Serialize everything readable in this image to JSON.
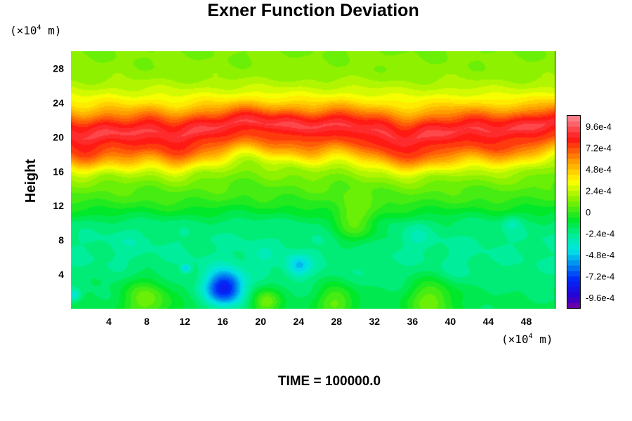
{
  "chart_data": {
    "type": "heatmap",
    "title": "Exner Function Deviation",
    "ylabel": "Height",
    "xlabel": "",
    "x_unit": {
      "prefix": "(×10",
      "exp": "4",
      "suffix": " m)"
    },
    "y_unit": {
      "prefix": "(×10",
      "exp": "4",
      "suffix": " m)"
    },
    "xlim": [
      0,
      51
    ],
    "ylim": [
      0,
      30
    ],
    "x_ticks": [
      4,
      8,
      12,
      16,
      20,
      24,
      28,
      32,
      36,
      40,
      44,
      48
    ],
    "y_ticks": [
      4,
      8,
      12,
      16,
      20,
      24,
      28
    ],
    "colorbar": {
      "range": [
        -0.00108,
        0.00108
      ],
      "tick_values": [
        0.00096,
        0.00072,
        0.00048,
        0.00024,
        0,
        -0.00024,
        -0.00048,
        -0.00072,
        -0.00096
      ],
      "tick_labels": [
        "9.6e-4",
        "7.2e-4",
        "4.8e-4",
        "2.4e-4",
        "0",
        "-2.4e-4",
        "-4.8e-4",
        "-7.2e-4",
        "-9.6e-4"
      ]
    },
    "vertical_profile": [
      [
        0,
        -0.00016
      ],
      [
        2,
        -0.00018
      ],
      [
        4,
        -0.00022
      ],
      [
        6,
        -0.00024
      ],
      [
        8,
        -0.00024
      ],
      [
        10,
        -0.0002
      ],
      [
        11,
        -0.00012
      ],
      [
        12,
        -4e-05
      ],
      [
        13,
        2e-05
      ],
      [
        14,
        6e-05
      ],
      [
        15,
        0.00012
      ],
      [
        16,
        0.0002
      ],
      [
        17,
        0.00036
      ],
      [
        18,
        0.00056
      ],
      [
        19,
        0.00072
      ],
      [
        20,
        0.0008
      ],
      [
        21,
        0.00092
      ],
      [
        22,
        0.0008
      ],
      [
        23,
        0.0006
      ],
      [
        24,
        0.00042
      ],
      [
        25,
        0.0003
      ],
      [
        26,
        0.00022
      ],
      [
        27,
        0.00016
      ],
      [
        28,
        0.00014
      ],
      [
        30,
        0.00012
      ]
    ],
    "features": [
      {
        "x": 16.2,
        "y": 2.4,
        "value": -0.00084,
        "radius": 2.0
      },
      {
        "x": 24.0,
        "y": 5.0,
        "value": -0.0005,
        "radius": 1.3
      },
      {
        "x": 12.1,
        "y": 4.7,
        "value": -0.0005,
        "radius": 0.5
      },
      {
        "x": 0.3,
        "y": 1.6,
        "value": -0.0004,
        "radius": 0.7
      },
      {
        "x": 36.5,
        "y": 8.5,
        "value": -0.0003,
        "radius": 1.5
      },
      {
        "x": 46.5,
        "y": 10.0,
        "value": -0.0003,
        "radius": 1.0
      },
      {
        "x": 6.0,
        "y": 8.0,
        "value": -0.00028,
        "radius": 2.0
      },
      {
        "x": 20.0,
        "y": 6.0,
        "value": -0.0003,
        "radius": 1.6
      },
      {
        "x": 40.5,
        "y": 4.5,
        "value": -0.00026,
        "radius": 2.0
      },
      {
        "x": 8.0,
        "y": 1.0,
        "value": 0.0001,
        "radius": 2.5
      },
      {
        "x": 38.0,
        "y": 1.0,
        "value": 0.0001,
        "radius": 2.5
      },
      {
        "x": 28.0,
        "y": 0.8,
        "value": 8e-05,
        "radius": 2.0
      },
      {
        "x": 20.5,
        "y": 0.8,
        "value": 0.0001,
        "radius": 1.5
      },
      {
        "x": 30.0,
        "y": 10.0,
        "value": 6e-05,
        "radius": 2.5
      }
    ]
  },
  "footer": {
    "time_label": "TIME = 100000.0"
  }
}
